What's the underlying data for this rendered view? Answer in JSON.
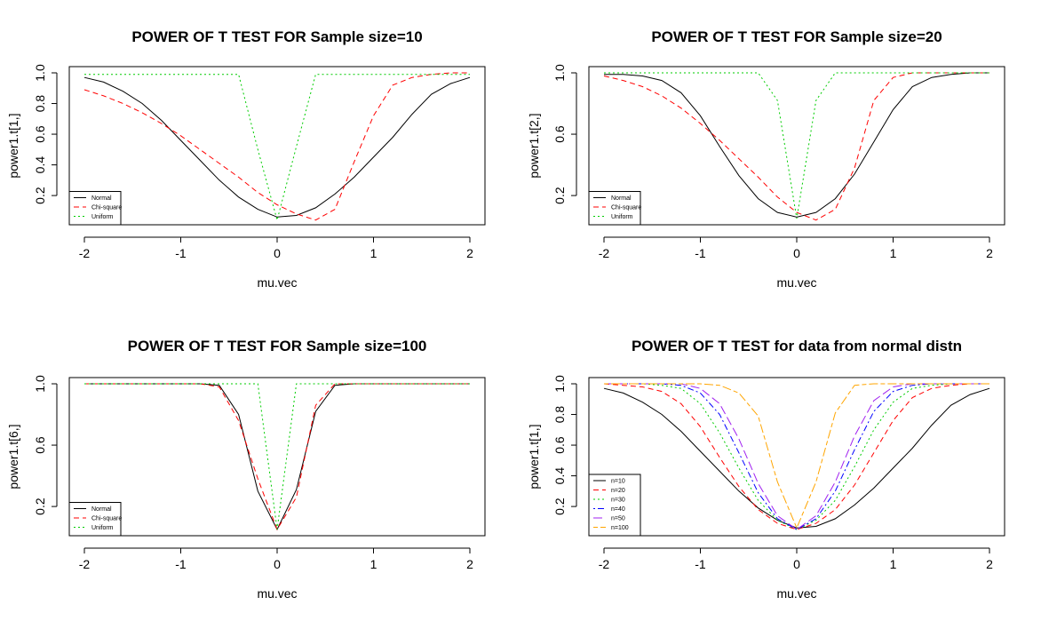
{
  "colors": {
    "normal": "#000000",
    "chi": "#ff0000",
    "uniform": "#00cc00",
    "n10": "#000000",
    "n20": "#ff0000",
    "n30": "#00cc00",
    "n40": "#0000ff",
    "n50": "#a020f0",
    "n100": "#ffa500"
  },
  "chart_data": [
    {
      "type": "line",
      "title": "POWER OF T TEST FOR Sample size=10",
      "xlabel": "mu.vec",
      "ylabel": "power1.t[1,]",
      "xlim": [
        -2,
        2
      ],
      "ylim": [
        0.05,
        1.0
      ],
      "xticks": [
        "-2",
        "-1",
        "0",
        "1",
        "2"
      ],
      "yticks": [
        "0.2",
        "0.4",
        "0.6",
        "0.8",
        "1.0"
      ],
      "legend_position": "bottom-left",
      "x": [
        -2,
        -1.8,
        -1.6,
        -1.4,
        -1.2,
        -1,
        -0.8,
        -0.6,
        -0.4,
        -0.2,
        0,
        0.2,
        0.4,
        0.6,
        0.8,
        1,
        1.2,
        1.4,
        1.6,
        1.8,
        2
      ],
      "series": [
        {
          "name": "Normal",
          "color": "#000000",
          "dash": "solid",
          "values": [
            0.97,
            0.94,
            0.88,
            0.8,
            0.69,
            0.56,
            0.43,
            0.3,
            0.19,
            0.11,
            0.06,
            0.07,
            0.12,
            0.21,
            0.32,
            0.45,
            0.58,
            0.73,
            0.86,
            0.93,
            0.97
          ]
        },
        {
          "name": "Chi-square",
          "color": "#ff0000",
          "dash": "dashed",
          "values": [
            0.89,
            0.85,
            0.8,
            0.74,
            0.67,
            0.59,
            0.5,
            0.41,
            0.32,
            0.22,
            0.14,
            0.08,
            0.04,
            0.11,
            0.42,
            0.72,
            0.92,
            0.97,
            0.99,
            1.0,
            1.0
          ]
        },
        {
          "name": "Uniform",
          "color": "#00cc00",
          "dash": "dotted",
          "values": [
            0.99,
            0.99,
            0.99,
            0.99,
            0.99,
            0.99,
            0.99,
            0.99,
            0.99,
            0.5,
            0.04,
            0.52,
            0.99,
            0.99,
            0.99,
            0.99,
            0.99,
            0.99,
            0.99,
            0.99,
            0.99
          ]
        }
      ]
    },
    {
      "type": "line",
      "title": "POWER OF T TEST FOR Sample size=20",
      "xlabel": "mu.vec",
      "ylabel": "power1.t[2,]",
      "xlim": [
        -2,
        2
      ],
      "ylim": [
        0.05,
        1.0
      ],
      "xticks": [
        "-2",
        "-1",
        "0",
        "1",
        "2"
      ],
      "yticks": [
        "0.2",
        "0.6",
        "1.0"
      ],
      "legend_position": "bottom-left",
      "x": [
        -2,
        -1.8,
        -1.6,
        -1.4,
        -1.2,
        -1,
        -0.8,
        -0.6,
        -0.4,
        -0.2,
        0,
        0.2,
        0.4,
        0.6,
        0.8,
        1,
        1.2,
        1.4,
        1.6,
        1.8,
        2
      ],
      "series": [
        {
          "name": "Normal",
          "color": "#000000",
          "dash": "solid",
          "values": [
            0.99,
            0.99,
            0.98,
            0.95,
            0.87,
            0.72,
            0.52,
            0.33,
            0.18,
            0.09,
            0.06,
            0.09,
            0.18,
            0.34,
            0.55,
            0.76,
            0.91,
            0.97,
            0.99,
            1.0,
            1.0
          ]
        },
        {
          "name": "Chi-square",
          "color": "#ff0000",
          "dash": "dashed",
          "values": [
            0.98,
            0.95,
            0.91,
            0.85,
            0.77,
            0.67,
            0.56,
            0.44,
            0.32,
            0.19,
            0.09,
            0.04,
            0.11,
            0.38,
            0.82,
            0.97,
            1.0,
            1.0,
            1.0,
            1.0,
            1.0
          ]
        },
        {
          "name": "Uniform",
          "color": "#00cc00",
          "dash": "dotted",
          "values": [
            1.0,
            1.0,
            1.0,
            1.0,
            1.0,
            1.0,
            1.0,
            1.0,
            1.0,
            0.82,
            0.05,
            0.82,
            1.0,
            1.0,
            1.0,
            1.0,
            1.0,
            1.0,
            1.0,
            1.0,
            1.0
          ]
        }
      ]
    },
    {
      "type": "line",
      "title": "POWER OF T TEST FOR Sample size=100",
      "xlabel": "mu.vec",
      "ylabel": "power1.t[6,]",
      "xlim": [
        -2,
        2
      ],
      "ylim": [
        0.05,
        1.0
      ],
      "xticks": [
        "-2",
        "-1",
        "0",
        "1",
        "2"
      ],
      "yticks": [
        "0.2",
        "0.6",
        "1.0"
      ],
      "legend_position": "bottom-left",
      "x": [
        -2,
        -1.8,
        -1.6,
        -1.4,
        -1.2,
        -1,
        -0.8,
        -0.6,
        -0.4,
        -0.2,
        0,
        0.2,
        0.4,
        0.6,
        0.8,
        1,
        1.2,
        1.4,
        1.6,
        1.8,
        2
      ],
      "series": [
        {
          "name": "Normal",
          "color": "#000000",
          "dash": "solid",
          "values": [
            1.0,
            1.0,
            1.0,
            1.0,
            1.0,
            1.0,
            1.0,
            0.99,
            0.8,
            0.3,
            0.05,
            0.31,
            0.82,
            0.99,
            1.0,
            1.0,
            1.0,
            1.0,
            1.0,
            1.0,
            1.0
          ]
        },
        {
          "name": "Chi-square",
          "color": "#ff0000",
          "dash": "dashed",
          "values": [
            1.0,
            1.0,
            1.0,
            1.0,
            1.0,
            1.0,
            1.0,
            0.98,
            0.76,
            0.38,
            0.05,
            0.26,
            0.86,
            1.0,
            1.0,
            1.0,
            1.0,
            1.0,
            1.0,
            1.0,
            1.0
          ]
        },
        {
          "name": "Uniform",
          "color": "#00cc00",
          "dash": "dotted",
          "values": [
            1.0,
            1.0,
            1.0,
            1.0,
            1.0,
            1.0,
            1.0,
            1.0,
            1.0,
            1.0,
            0.05,
            1.0,
            1.0,
            1.0,
            1.0,
            1.0,
            1.0,
            1.0,
            1.0,
            1.0,
            1.0
          ]
        }
      ]
    },
    {
      "type": "line",
      "title": "POWER OF T TEST for data from normal distn",
      "xlabel": "mu.vec",
      "ylabel": "power1.t[1,]",
      "xlim": [
        -2,
        2
      ],
      "ylim": [
        0.05,
        1.0
      ],
      "xticks": [
        "-2",
        "-1",
        "0",
        "1",
        "2"
      ],
      "yticks": [
        "0.2",
        "0.4",
        "0.6",
        "0.8",
        "1.0"
      ],
      "legend_position": "bottom-left",
      "x": [
        -2,
        -1.8,
        -1.6,
        -1.4,
        -1.2,
        -1,
        -0.8,
        -0.6,
        -0.4,
        -0.2,
        0,
        0.2,
        0.4,
        0.6,
        0.8,
        1,
        1.2,
        1.4,
        1.6,
        1.8,
        2
      ],
      "series": [
        {
          "name": "n=10",
          "color": "#000000",
          "dash": "solid",
          "values": [
            0.97,
            0.94,
            0.88,
            0.8,
            0.69,
            0.56,
            0.43,
            0.3,
            0.19,
            0.11,
            0.06,
            0.07,
            0.12,
            0.21,
            0.32,
            0.45,
            0.58,
            0.73,
            0.86,
            0.93,
            0.97
          ]
        },
        {
          "name": "n=20",
          "color": "#ff0000",
          "dash": "dashed",
          "values": [
            1.0,
            0.99,
            0.98,
            0.95,
            0.87,
            0.72,
            0.52,
            0.33,
            0.18,
            0.09,
            0.05,
            0.09,
            0.18,
            0.34,
            0.55,
            0.76,
            0.91,
            0.97,
            0.99,
            1.0,
            1.0
          ]
        },
        {
          "name": "n=30",
          "color": "#00cc00",
          "dash": "dotted",
          "values": [
            1.0,
            1.0,
            1.0,
            0.99,
            0.97,
            0.87,
            0.68,
            0.45,
            0.24,
            0.11,
            0.05,
            0.11,
            0.24,
            0.46,
            0.7,
            0.88,
            0.97,
            0.99,
            1.0,
            1.0,
            1.0
          ]
        },
        {
          "name": "n=40",
          "color": "#0000ff",
          "dash": "dashdot",
          "values": [
            1.0,
            1.0,
            1.0,
            1.0,
            0.99,
            0.94,
            0.8,
            0.55,
            0.29,
            0.12,
            0.05,
            0.12,
            0.3,
            0.57,
            0.82,
            0.95,
            0.99,
            1.0,
            1.0,
            1.0,
            1.0
          ]
        },
        {
          "name": "n=50",
          "color": "#a020f0",
          "dash": "longdash",
          "values": [
            1.0,
            1.0,
            1.0,
            1.0,
            1.0,
            0.97,
            0.87,
            0.64,
            0.35,
            0.14,
            0.05,
            0.14,
            0.36,
            0.66,
            0.89,
            0.98,
            1.0,
            1.0,
            1.0,
            1.0,
            1.0
          ]
        },
        {
          "name": "n=100",
          "color": "#ffa500",
          "dash": "twodash",
          "values": [
            1.0,
            1.0,
            1.0,
            1.0,
            1.0,
            1.0,
            0.99,
            0.94,
            0.79,
            0.36,
            0.06,
            0.36,
            0.81,
            0.99,
            1.0,
            1.0,
            1.0,
            1.0,
            1.0,
            1.0,
            1.0
          ]
        }
      ]
    }
  ]
}
